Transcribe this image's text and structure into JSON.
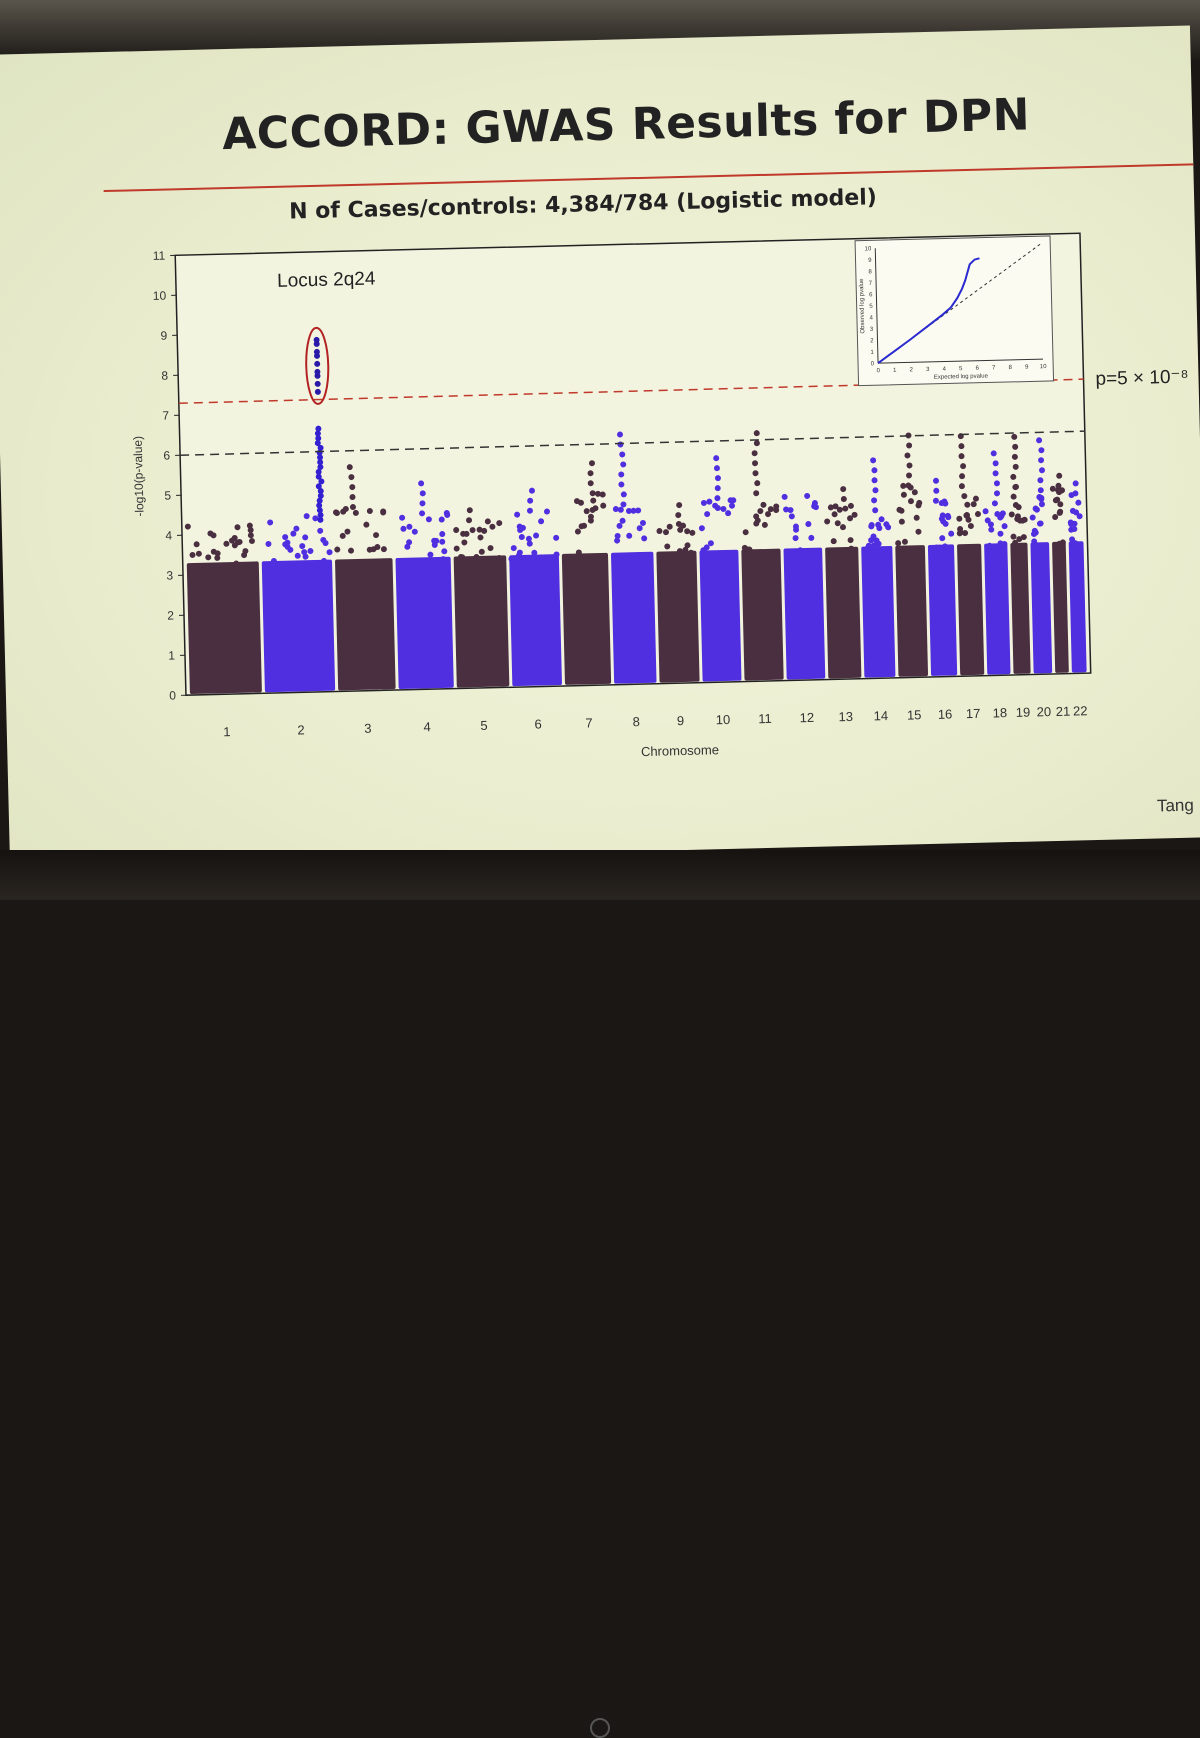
{
  "slide": {
    "title": "ACCORD: GWAS Results for DPN",
    "subtitle": "N of Cases/controls: 4,384/784  (Logistic model)",
    "credit": "Tang"
  },
  "chart_data": {
    "type": "scatter",
    "subtype": "manhattan",
    "ylabel": "-log10(p-value)",
    "xlabel": "Chromosome",
    "ylim": [
      0,
      11
    ],
    "yticks": [
      0,
      1,
      2,
      3,
      4,
      5,
      6,
      7,
      8,
      9,
      10,
      11
    ],
    "chromosomes": [
      "1",
      "2",
      "3",
      "4",
      "5",
      "6",
      "7",
      "8",
      "9",
      "10",
      "11",
      "12",
      "13",
      "14",
      "15",
      "16",
      "17",
      "18",
      "19",
      "20",
      "21",
      "22"
    ],
    "chromosome_colors": [
      "#4a2f40",
      "#4f2fe0",
      "#4a2f40",
      "#4f2fe0",
      "#4a2f40",
      "#4f2fe0",
      "#4a2f40",
      "#4f2fe0",
      "#4a2f40",
      "#4f2fe0",
      "#4a2f40",
      "#4f2fe0",
      "#4a2f40",
      "#4f2fe0",
      "#4a2f40",
      "#4f2fe0",
      "#4a2f40",
      "#4f2fe0",
      "#4a2f40",
      "#4f2fe0",
      "#4a2f40",
      "#4f2fe0"
    ],
    "bulk_max_log10p": [
      4.3,
      4.5,
      4.6,
      4.4,
      4.2,
      4.4,
      4.8,
      4.5,
      4.2,
      4.6,
      4.7,
      4.6,
      4.5,
      4.2,
      4.8,
      4.4,
      4.5,
      4.3,
      4.7,
      4.6,
      4.7,
      4.5
    ],
    "peak_max_log10p": [
      4.3,
      4.5,
      5.8,
      5.2,
      4.5,
      4.9,
      5.6,
      6.3,
      4.6,
      5.7,
      6.4,
      4.8,
      4.8,
      5.6,
      6.2,
      4.9,
      6.0,
      5.7,
      6.0,
      5.9,
      5.0,
      4.8
    ],
    "top_locus": {
      "label": "Locus 2q24",
      "chromosome": "2",
      "log10p_values": [
        7.5,
        7.7,
        7.9,
        8.0,
        8.2,
        8.4,
        8.5,
        8.7,
        8.8
      ]
    },
    "threshold_lines": [
      {
        "log10p": 7.3,
        "color": "#c0392b",
        "label": "p=5 × 10⁻⁸"
      },
      {
        "log10p": 6.0,
        "color": "#333333",
        "label": ""
      }
    ],
    "qq_inset": {
      "xlabel": "Expected log pvalue",
      "ylabel": "Observed log pvalue",
      "xlim": [
        0,
        10
      ],
      "ylim": [
        0,
        10
      ],
      "ticks": [
        0,
        1,
        2,
        3,
        4,
        5,
        6,
        7,
        8,
        9,
        10
      ],
      "points": [
        [
          0,
          0
        ],
        [
          1,
          1
        ],
        [
          2,
          2
        ],
        [
          3,
          3.05
        ],
        [
          4,
          4.1
        ],
        [
          4.5,
          4.7
        ],
        [
          4.9,
          5.5
        ],
        [
          5.2,
          6.3
        ],
        [
          5.4,
          7.0
        ],
        [
          5.7,
          8.4
        ],
        [
          6.0,
          8.8
        ],
        [
          6.3,
          8.9
        ]
      ]
    }
  }
}
